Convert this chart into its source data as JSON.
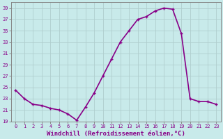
{
  "hours": [
    0,
    1,
    2,
    3,
    4,
    5,
    6,
    7,
    8,
    9,
    10,
    11,
    12,
    13,
    14,
    15,
    16,
    17,
    18,
    19,
    20,
    21,
    22,
    23
  ],
  "values": [
    24.5,
    23.0,
    22.0,
    21.8,
    21.3,
    21.0,
    20.3,
    19.2,
    21.5,
    24.0,
    27.0,
    30.0,
    33.0,
    35.0,
    37.0,
    37.5,
    38.5,
    39.0,
    38.8,
    34.5,
    23.0,
    22.5,
    22.5,
    22.0
  ],
  "ylim": [
    19,
    40
  ],
  "xlim": [
    -0.5,
    23.5
  ],
  "yticks": [
    19,
    21,
    23,
    25,
    27,
    29,
    31,
    33,
    35,
    37,
    39
  ],
  "xlabel": "Windchill (Refroidissement éolien,°C)",
  "line_color": "#880088",
  "bg_color": "#c8eaea",
  "grid_color": "#b0cece",
  "spine_color": "#888888",
  "tick_label_color": "#880088",
  "xlabel_color": "#880088",
  "figsize": [
    3.2,
    2.0
  ],
  "dpi": 100,
  "linewidth": 1.2,
  "markersize": 3.5,
  "tick_fontsize": 5.0,
  "xlabel_fontsize": 6.5
}
